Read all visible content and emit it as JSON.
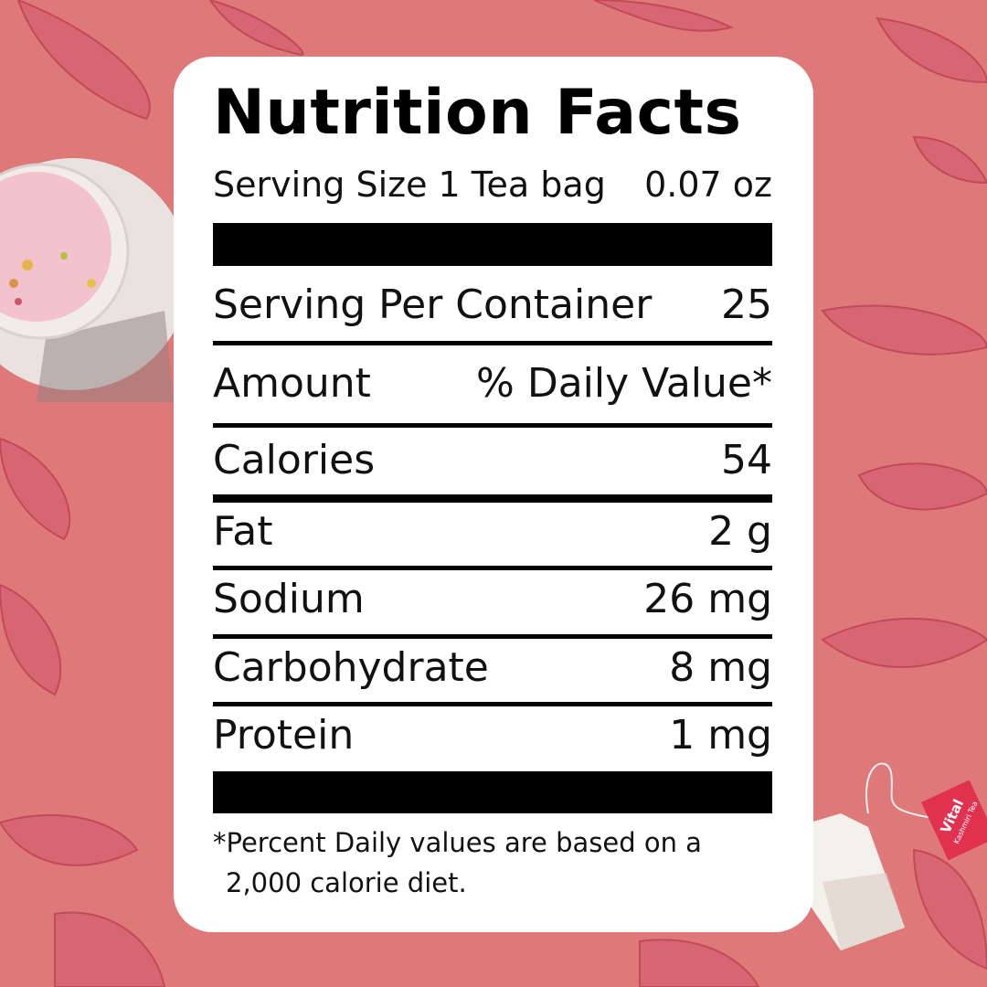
{
  "title": "Nutrition Facts",
  "serving_size": {
    "label": "Serving Size 1 Tea bag",
    "value": "0.07 oz"
  },
  "servings_per_container": {
    "label": "Serving Per Container",
    "value": "25"
  },
  "header": {
    "amount": "Amount",
    "daily_value": "% Daily Value*"
  },
  "rows": [
    {
      "label": "Calories",
      "value": "54"
    },
    {
      "label": "Fat",
      "value": "2 g"
    },
    {
      "label": "Sodium",
      "value": "26 mg"
    },
    {
      "label": "Carbohydrate",
      "value": "8 mg"
    },
    {
      "label": "Protein",
      "value": "1 mg"
    }
  ],
  "footnote": {
    "line1": "*Percent Daily values are based on a",
    "line2": "2,000 calorie diet."
  },
  "tea_tag": {
    "brand": "Vital",
    "product": "Kashmiri Tea"
  },
  "colors": {
    "background": "#df7878",
    "leaf": "#c9485a",
    "card": "#ffffff",
    "tag": "#e0314f"
  }
}
